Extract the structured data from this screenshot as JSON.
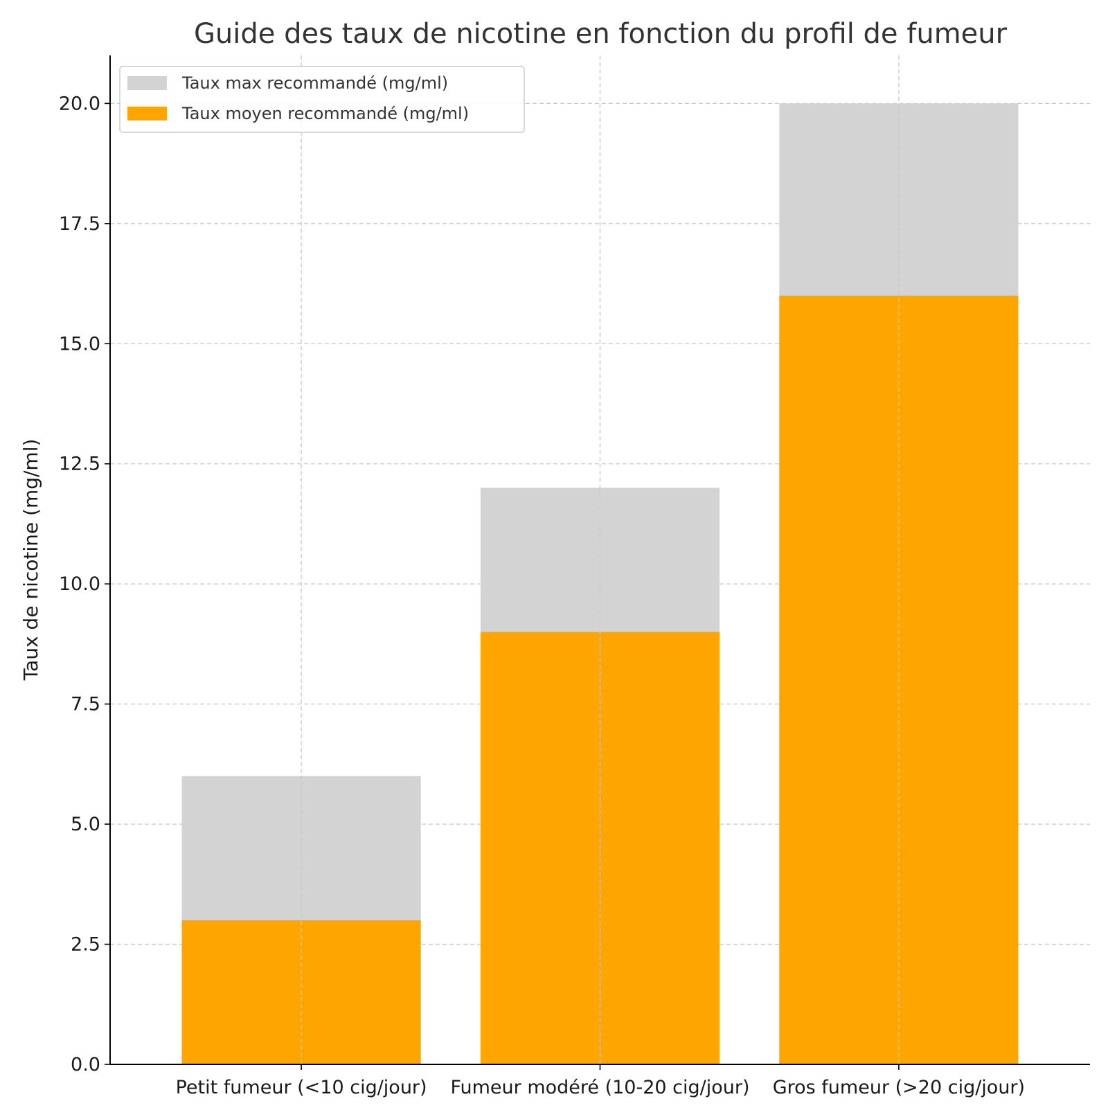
{
  "chart_data": {
    "type": "bar",
    "stacked": false,
    "overlaid": true,
    "title": "Guide des taux de nicotine en fonction du profil de fumeur",
    "xlabel": "",
    "ylabel": "Taux de nicotine (mg/ml)",
    "categories": [
      "Petit fumeur (<10 cig/jour)",
      "Fumeur modéré (10-20 cig/jour)",
      "Gros fumeur (>20 cig/jour)"
    ],
    "series": [
      {
        "name": "Taux max recommandé (mg/ml)",
        "values": [
          6,
          12,
          20
        ],
        "color": "#d3d3d3"
      },
      {
        "name": "Taux moyen recommandé (mg/ml)",
        "values": [
          3,
          9,
          16
        ],
        "color": "#ffa500"
      }
    ],
    "ylim": [
      0,
      21
    ],
    "yticks": [
      "0.0",
      "2.5",
      "5.0",
      "7.5",
      "10.0",
      "12.5",
      "15.0",
      "17.5",
      "20.0"
    ],
    "grid": true,
    "legend_position": "top-left"
  }
}
